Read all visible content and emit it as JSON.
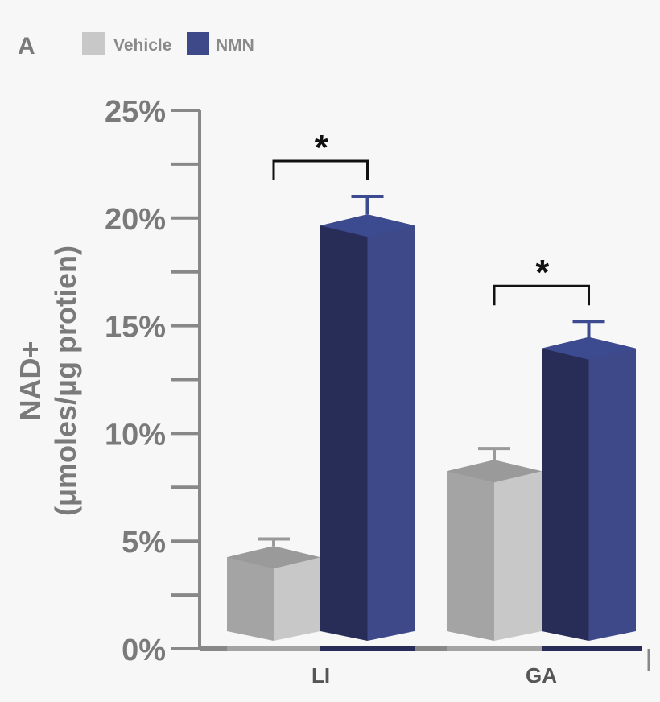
{
  "chart_data": {
    "type": "bar",
    "panel_label": "A",
    "categories": [
      "LI",
      "GA"
    ],
    "series": [
      {
        "name": "Vehicle",
        "values": [
          3.8,
          7.8
        ],
        "error": [
          1.3,
          1.5
        ]
      },
      {
        "name": "NMN",
        "values": [
          19.2,
          13.5
        ],
        "error": [
          1.8,
          1.7
        ]
      }
    ],
    "ylabel_line1": "NAD+",
    "ylabel_line2": "(μmoles/μg protien)",
    "yticks": [
      "0%",
      "5%",
      "10%",
      "15%",
      "20%",
      "25%"
    ],
    "ylim": [
      0,
      25
    ],
    "significance": [
      "*",
      "*"
    ],
    "legend_position": "top-left",
    "colors": {
      "vehicle_front": "#a4a4a4",
      "vehicle_side": "#c8c8c8",
      "vehicle_top": "#9a9a9a",
      "nmn_front": "#282d57",
      "nmn_side": "#3e4989",
      "nmn_top": "#3c4a90",
      "axis": "#888888",
      "text": "#7a7a7a"
    }
  }
}
